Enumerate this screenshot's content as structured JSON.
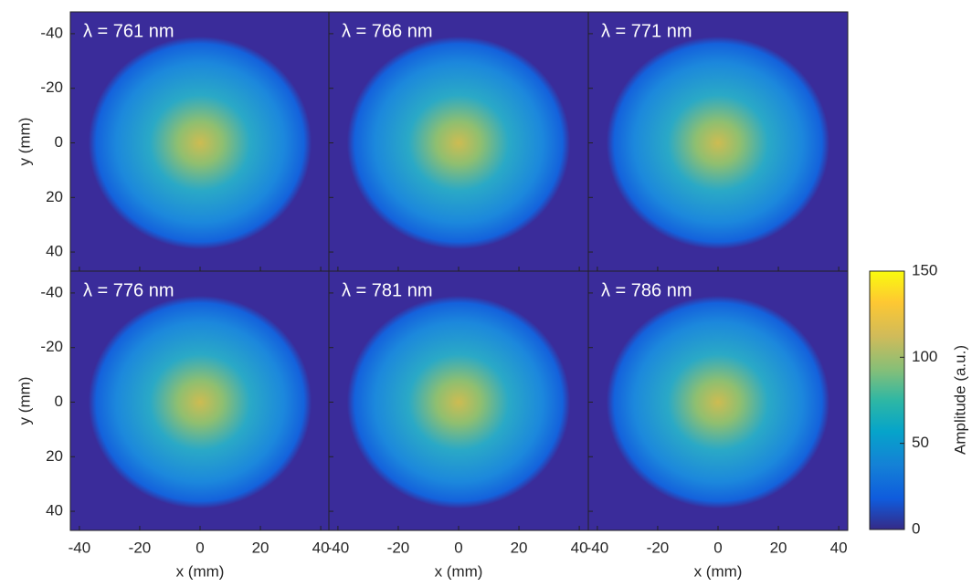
{
  "chart_data": {
    "type": "heatmap",
    "panels": [
      {
        "title": "λ = 761 nm"
      },
      {
        "title": "λ = 766 nm"
      },
      {
        "title": "λ = 771 nm"
      },
      {
        "title": "λ = 776 nm"
      },
      {
        "title": "λ = 781 nm"
      },
      {
        "title": "λ = 786 nm"
      }
    ],
    "xlabel": "x (mm)",
    "ylabel": "y (mm)",
    "xlim": [
      -43,
      43
    ],
    "ylim": [
      -48,
      47
    ],
    "yreverse": true,
    "xticks": [
      -40,
      -20,
      0,
      20,
      40
    ],
    "yticks": [
      -40,
      -20,
      0,
      20,
      40
    ],
    "colorbar": {
      "label": "Amplitude (a.u.)",
      "lim": [
        0,
        150
      ],
      "ticks": [
        0,
        50,
        100,
        150
      ]
    }
  }
}
